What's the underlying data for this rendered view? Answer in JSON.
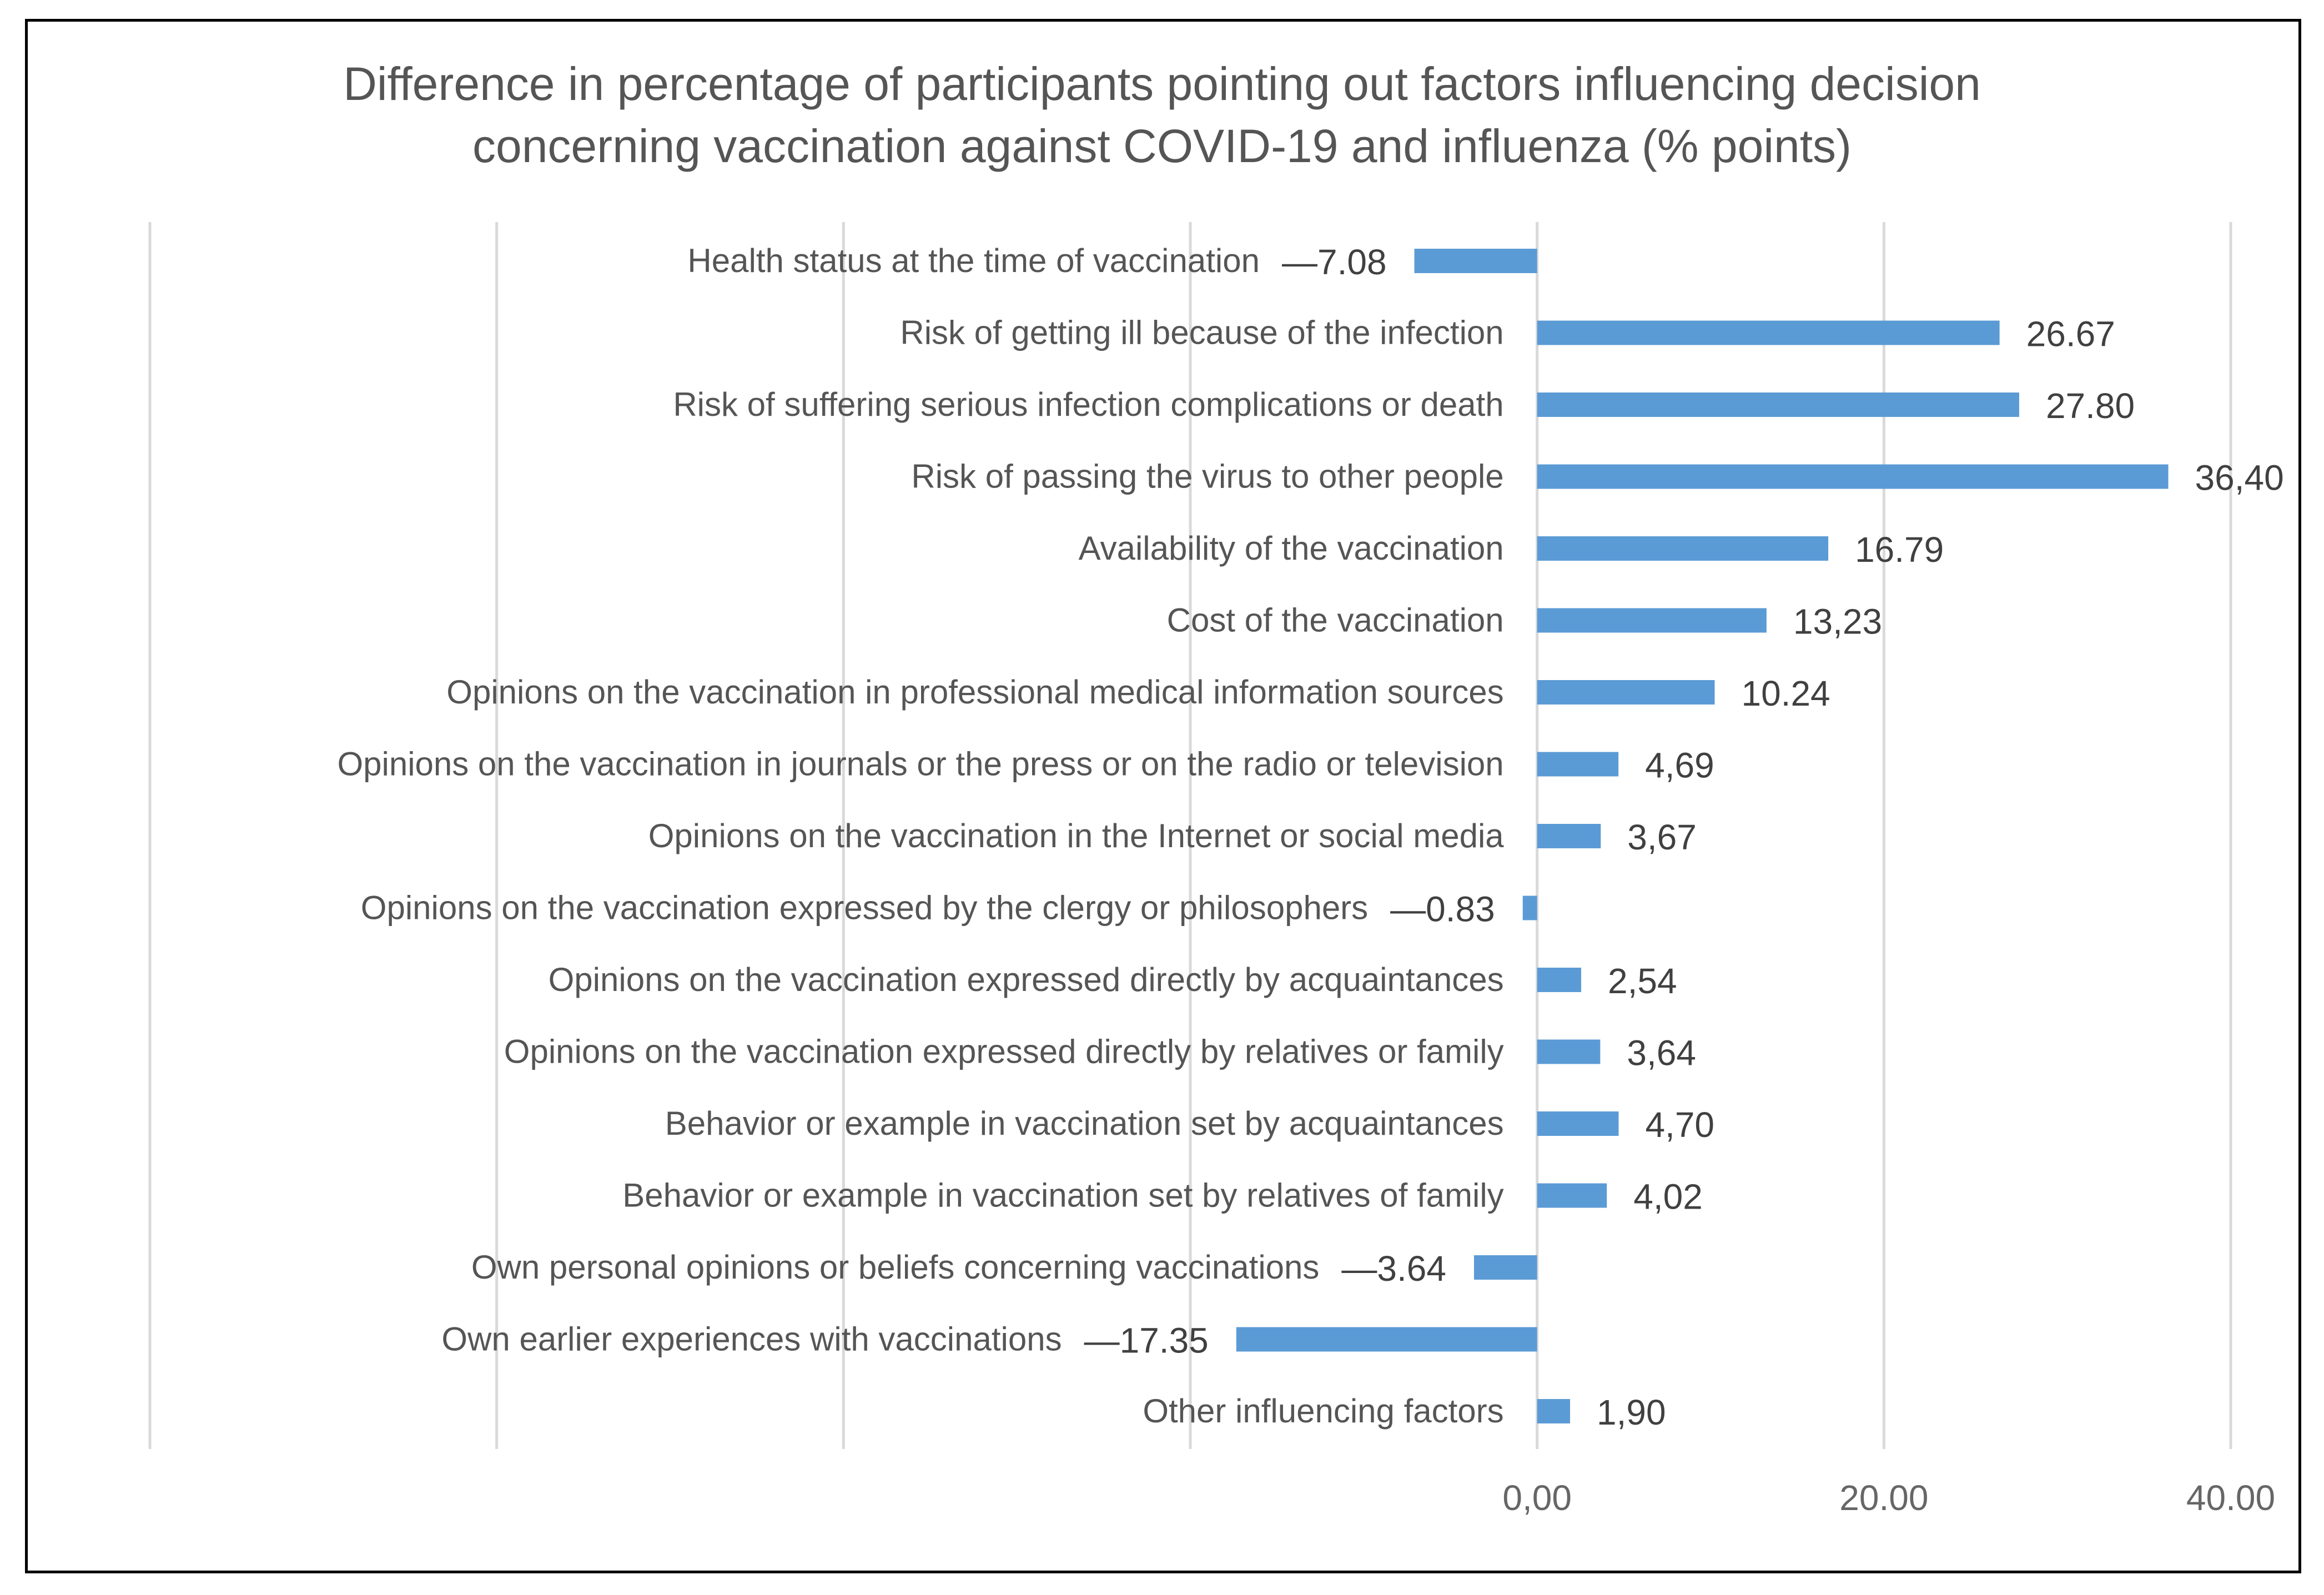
{
  "chart_data": {
    "type": "bar",
    "orientation": "horizontal",
    "title": "Difference in percentage of participants pointing out factors influencing decision concerning vaccination against COVID-19 and influenza (% points)",
    "title_lines": [
      "Difference in percentage of participants pointing out factors influencing decision",
      "concerning vaccination against COVID-19 and influenza (% points)"
    ],
    "categories": [
      "Health status at the time of vaccination",
      "Risk of  getting ill because of the infection",
      "Risk of suffering serious infection complications or death",
      "Risk of passing the virus to other people",
      "Availability of the  vaccination",
      "Cost of the vaccination",
      "Opinions on the vaccination in professional medical information sources",
      "Opinions on the vaccination  in  journals or the press or on the radio or television",
      "Opinions on the vaccination in the Internet or social media",
      "Opinions on the vaccination expressed by the clergy or philosophers",
      "Opinions on the vaccination expressed directly by acquaintances",
      "Opinions on the vaccination expressed directly by relatives or family",
      "Behavior or example in vaccination set by acquaintances",
      "Behavior or example in vaccination set by relatives of family",
      "Own personal opinions or beliefs concerning vaccinations",
      "Own earlier experiences with vaccinations",
      "Other influencing factors"
    ],
    "values": [
      -7.08,
      26.67,
      27.8,
      36.4,
      16.79,
      13.23,
      10.24,
      4.69,
      3.67,
      -0.83,
      2.54,
      3.64,
      4.7,
      4.02,
      -3.64,
      -17.35,
      1.9
    ],
    "data_labels": [
      "—7.08",
      "26.67",
      "27.80",
      "36,40",
      "16.79",
      "13,23",
      "10.24",
      "4,69",
      "3,67",
      "—0.83",
      "2,54",
      "3,64",
      "4,70",
      "4,02",
      "—3.64",
      "—17.35",
      "1,90"
    ],
    "x_ticks": [
      -80,
      -60,
      -40,
      -20,
      0,
      20,
      40
    ],
    "x_tick_labels": [
      "",
      "",
      "",
      "",
      "0,00",
      "20.00",
      "40.00"
    ],
    "xlim": [
      -80,
      40
    ],
    "xlabel": "",
    "ylabel": "",
    "grid": "vertical",
    "legend": "none",
    "bar_color": "#5B9BD5",
    "grid_color": "#D9D9D9"
  }
}
